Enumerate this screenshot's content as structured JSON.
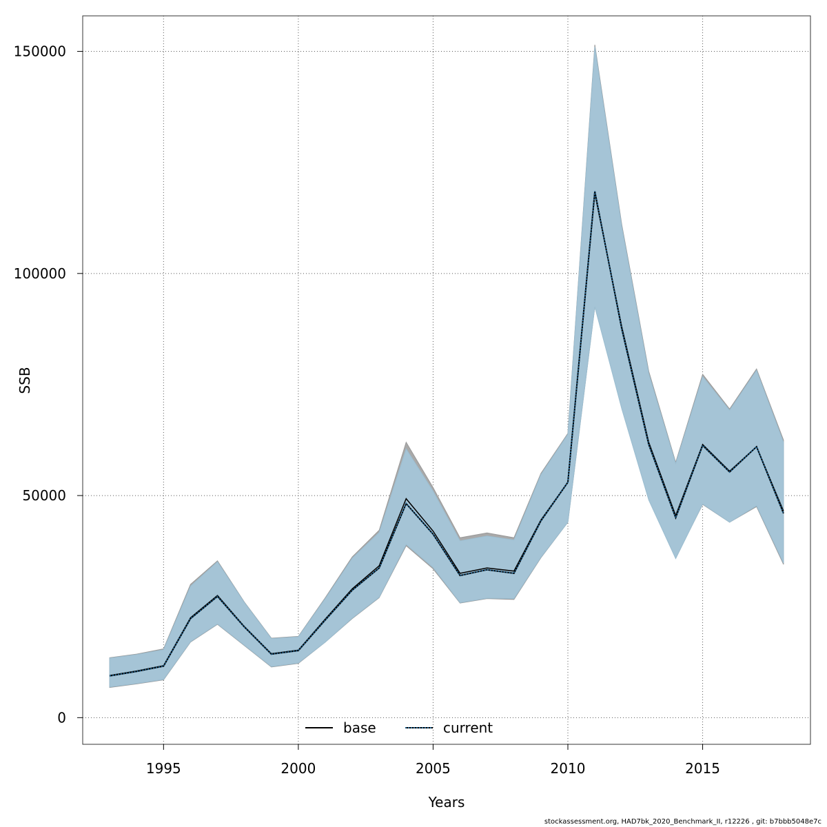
{
  "chart_data": {
    "type": "line",
    "title": "",
    "xlabel": "Years",
    "ylabel": "SSB",
    "xlim": [
      1992,
      2019
    ],
    "ylim": [
      -6000,
      158000
    ],
    "x_ticks": [
      1995,
      2000,
      2005,
      2010,
      2015
    ],
    "y_ticks": [
      0,
      50000,
      100000,
      150000
    ],
    "grid": true,
    "legend_position": "bottom-center",
    "x": [
      1993,
      1994,
      1995,
      1996,
      1997,
      1998,
      1999,
      2000,
      2001,
      2002,
      2003,
      2004,
      2005,
      2006,
      2007,
      2008,
      2009,
      2010,
      2011,
      2012,
      2013,
      2014,
      2015,
      2016,
      2017,
      2018
    ],
    "series": [
      {
        "name": "base",
        "line_style": "solid",
        "color": "#000000",
        "band_color": "#a9a9a9",
        "values": [
          9500,
          10500,
          11700,
          22500,
          27500,
          20500,
          14400,
          15200,
          22200,
          29000,
          34200,
          49300,
          42000,
          32500,
          33700,
          33000,
          44500,
          53000,
          118000,
          88000,
          62000,
          45500,
          61500,
          55500,
          61000,
          46500
        ],
        "lower": [
          6800,
          7600,
          8500,
          17000,
          21000,
          16200,
          11400,
          12200,
          17000,
          22300,
          27000,
          38700,
          33500,
          25800,
          26800,
          26600,
          36000,
          44000,
          92500,
          70000,
          49500,
          36000,
          48000,
          44000,
          47500,
          34500
        ],
        "upper": [
          13500,
          14300,
          15500,
          30000,
          35300,
          26000,
          17900,
          18300,
          27000,
          36200,
          42200,
          62000,
          51800,
          40500,
          41600,
          40500,
          55000,
          64000,
          151500,
          111000,
          78000,
          57500,
          77300,
          69500,
          78500,
          62500
        ]
      },
      {
        "name": "current",
        "line_style": "dotted",
        "color": "#1f5f8b",
        "band_color": "#a4c5d8",
        "values": [
          9400,
          10400,
          11600,
          22300,
          27300,
          20400,
          14300,
          15100,
          22000,
          28700,
          33700,
          48200,
          41300,
          32000,
          33300,
          32500,
          44300,
          53000,
          118500,
          87500,
          61500,
          45000,
          61300,
          55300,
          61000,
          46000
        ],
        "lower": [
          6900,
          7700,
          8600,
          17100,
          21100,
          16300,
          11500,
          12300,
          17000,
          22400,
          27100,
          39000,
          33800,
          25900,
          26900,
          26800,
          36100,
          44000,
          92500,
          69500,
          49000,
          35800,
          48100,
          44000,
          47700,
          34800
        ],
        "upper": [
          13400,
          14200,
          15300,
          29600,
          35100,
          25900,
          17800,
          18200,
          26800,
          35900,
          41700,
          60500,
          51000,
          39800,
          40900,
          40000,
          54700,
          63800,
          151000,
          110500,
          77500,
          57200,
          76800,
          69200,
          78200,
          62000
        ]
      }
    ]
  },
  "footer_text": "stockassessment.org, HAD7bk_2020_Benchmark_II, r12226 , git: b7bbb5048e7c"
}
